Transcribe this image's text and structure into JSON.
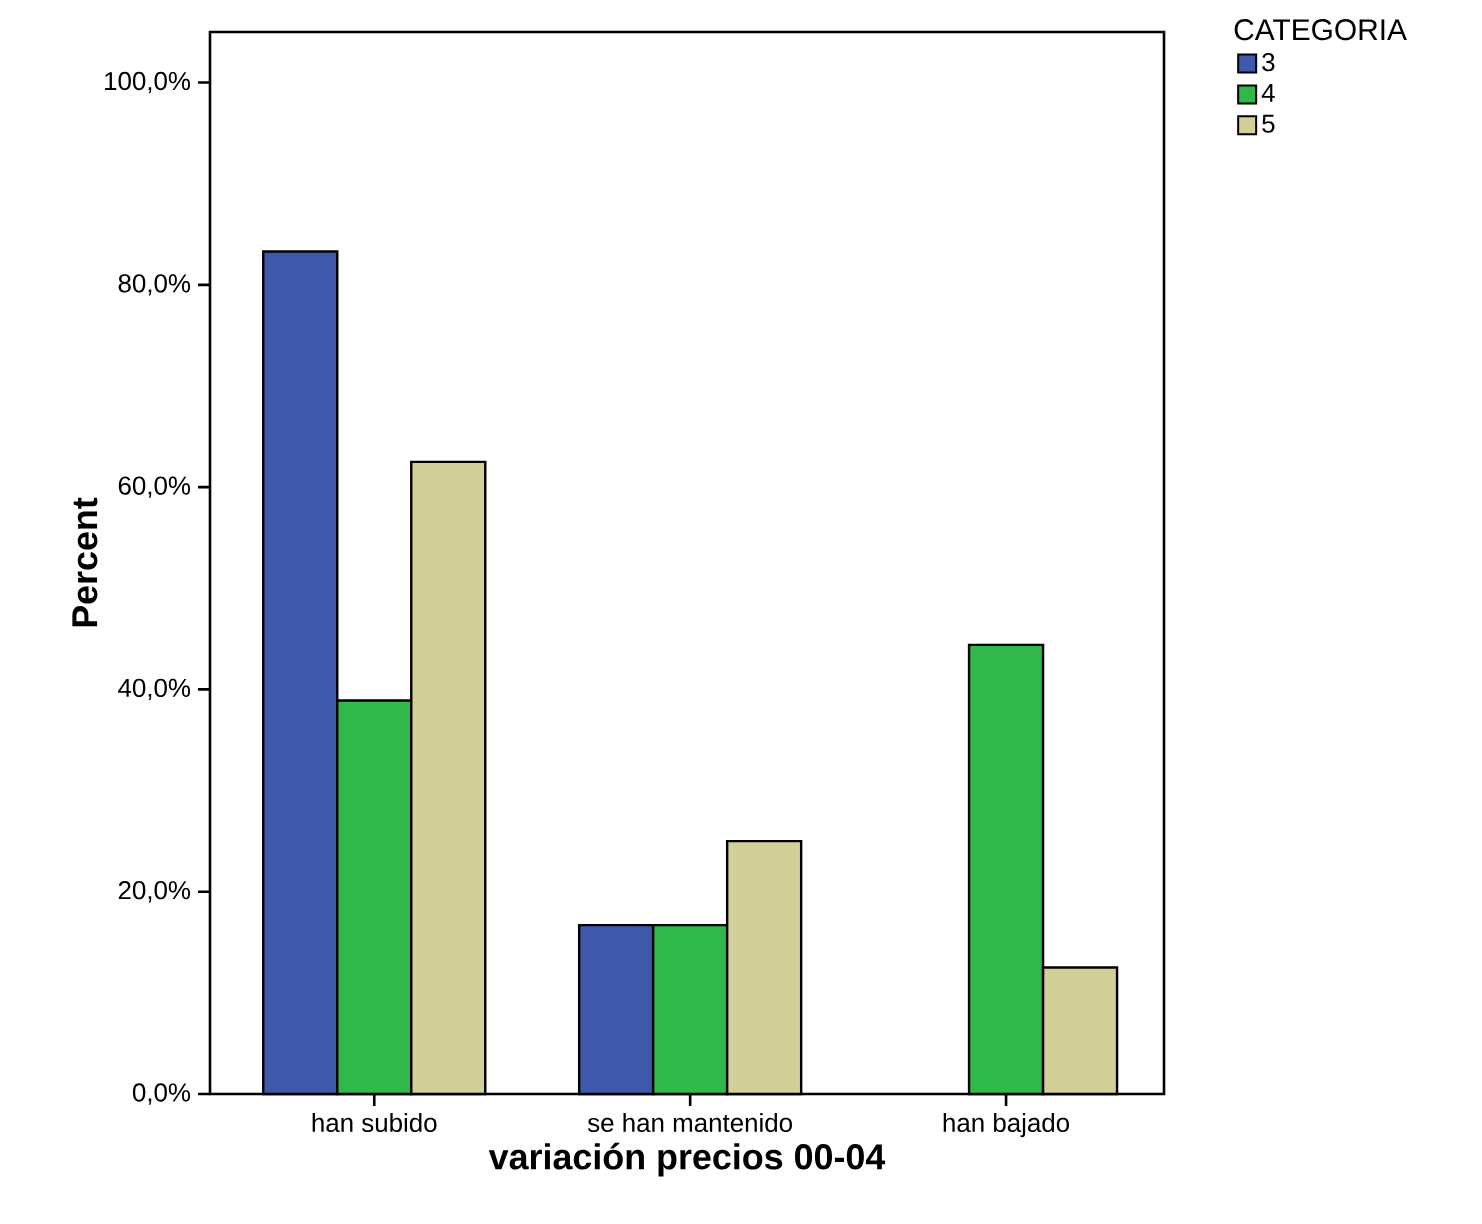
{
  "chart_data": {
    "type": "bar",
    "xlabel": "variación precios 00-04",
    "ylabel": "Percent",
    "legend_title": "CATEGORIA",
    "categories": [
      "han subido",
      "se han mantenido",
      "han bajado"
    ],
    "series": [
      {
        "name": "3",
        "color": "#3f59aa",
        "values": [
          83.3,
          16.7,
          null
        ]
      },
      {
        "name": "4",
        "color": "#31b84a",
        "values": [
          38.9,
          16.7,
          44.4
        ]
      },
      {
        "name": "5",
        "color": "#d3cf98",
        "values": [
          62.5,
          25.0,
          12.5
        ]
      }
    ],
    "ylim": [
      0,
      105
    ],
    "yticks": [
      {
        "value": 0,
        "label": "0,0%"
      },
      {
        "value": 20,
        "label": "20,0%"
      },
      {
        "value": 40,
        "label": "40,0%"
      },
      {
        "value": 60,
        "label": "60,0%"
      },
      {
        "value": 80,
        "label": "80,0%"
      },
      {
        "value": 100,
        "label": "100,0%"
      }
    ],
    "grid": false,
    "legend": "top right"
  }
}
